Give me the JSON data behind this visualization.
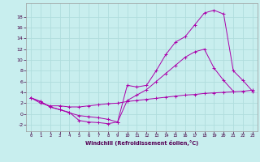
{
  "bg_color": "#c8eeee",
  "grid_color": "#b0dddd",
  "line_color": "#aa00aa",
  "xlabel": "Windchill (Refroidissement éolien,°C)",
  "xlim": [
    -0.5,
    23.5
  ],
  "ylim": [
    -3.2,
    20.5
  ],
  "yticks": [
    -2,
    0,
    2,
    4,
    6,
    8,
    10,
    12,
    14,
    16,
    18
  ],
  "xticks": [
    0,
    1,
    2,
    3,
    4,
    5,
    6,
    7,
    8,
    9,
    10,
    11,
    12,
    13,
    14,
    15,
    16,
    17,
    18,
    19,
    20,
    21,
    22,
    23
  ],
  "line1_x": [
    0,
    1,
    2,
    3,
    4,
    5,
    6,
    7,
    8,
    9,
    10,
    11,
    12,
    13,
    14,
    15,
    16,
    17,
    18,
    19,
    20,
    21,
    22,
    23
  ],
  "line1_y": [
    3.0,
    2.3,
    1.3,
    0.8,
    0.3,
    -1.2,
    -1.5,
    -1.6,
    -1.8,
    -1.5,
    5.3,
    5.0,
    5.3,
    8.0,
    11.0,
    13.3,
    14.3,
    16.5,
    18.7,
    19.2,
    18.5,
    8.0,
    6.2,
    4.2
  ],
  "line2_x": [
    0,
    1,
    2,
    3,
    4,
    5,
    6,
    7,
    8,
    9,
    10,
    11,
    12,
    13,
    14,
    15,
    16,
    17,
    18,
    19,
    20,
    21
  ],
  "line2_y": [
    3.0,
    2.3,
    1.3,
    0.8,
    0.2,
    -0.3,
    -0.5,
    -0.7,
    -1.0,
    -1.5,
    2.5,
    3.5,
    4.5,
    6.0,
    7.5,
    9.0,
    10.5,
    11.5,
    12.0,
    8.5,
    6.2,
    4.2
  ],
  "line3_x": [
    0,
    1,
    2,
    3,
    4,
    5,
    6,
    7,
    8,
    9,
    10,
    11,
    12,
    13,
    14,
    15,
    16,
    17,
    18,
    19,
    20,
    21,
    22,
    23
  ],
  "line3_y": [
    3.0,
    2.0,
    1.5,
    1.5,
    1.3,
    1.3,
    1.5,
    1.7,
    1.9,
    2.0,
    2.3,
    2.5,
    2.7,
    2.9,
    3.1,
    3.3,
    3.5,
    3.6,
    3.8,
    3.9,
    4.0,
    4.1,
    4.2,
    4.4
  ]
}
